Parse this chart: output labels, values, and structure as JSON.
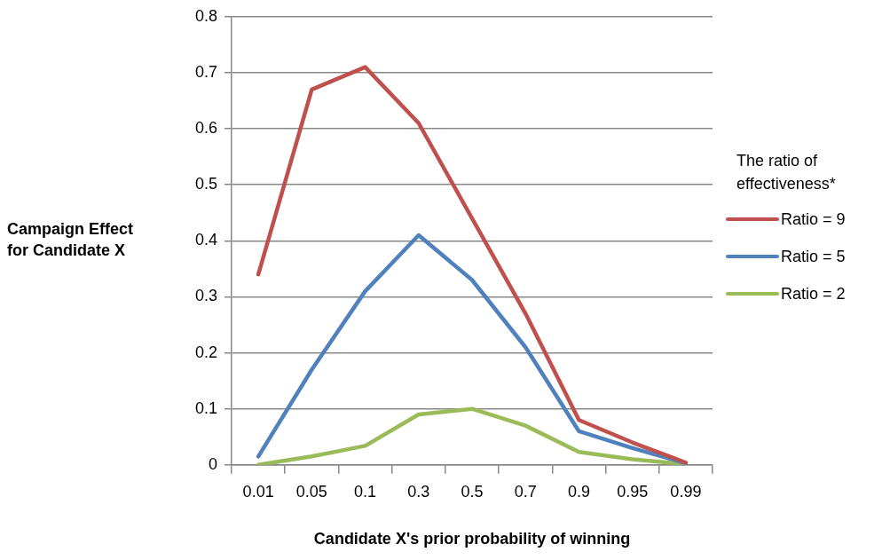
{
  "chart_data": {
    "type": "line",
    "xlabel": "Candidate X's prior probability of winning",
    "ylabel": "Campaign Effect for Candidate X",
    "legend_title": "The ratio of effectiveness*",
    "categories": [
      "0.01",
      "0.05",
      "0.1",
      "0.3",
      "0.5",
      "0.7",
      "0.9",
      "0.95",
      "0.99"
    ],
    "series": [
      {
        "name": "Ratio = 9",
        "color": "#c0504d",
        "values": [
          0.34,
          0.67,
          0.71,
          0.61,
          0.44,
          0.27,
          0.08,
          0.04,
          0.004
        ]
      },
      {
        "name": "Ratio = 5",
        "color": "#4f81bd",
        "values": [
          0.015,
          0.17,
          0.31,
          0.41,
          0.33,
          0.21,
          0.06,
          0.03,
          0.003
        ]
      },
      {
        "name": "Ratio = 2",
        "color": "#9bbb59",
        "values": [
          0,
          0.015,
          0.034,
          0.09,
          0.1,
          0.07,
          0.023,
          0.01,
          0.001
        ]
      }
    ],
    "ylim": [
      0,
      0.8
    ],
    "yticks": [
      0,
      0.1,
      0.2,
      0.3,
      0.4,
      0.5,
      0.6,
      0.7,
      0.8
    ],
    "grid": "y",
    "legend": "right",
    "marker": "none",
    "line_style": "solid"
  }
}
